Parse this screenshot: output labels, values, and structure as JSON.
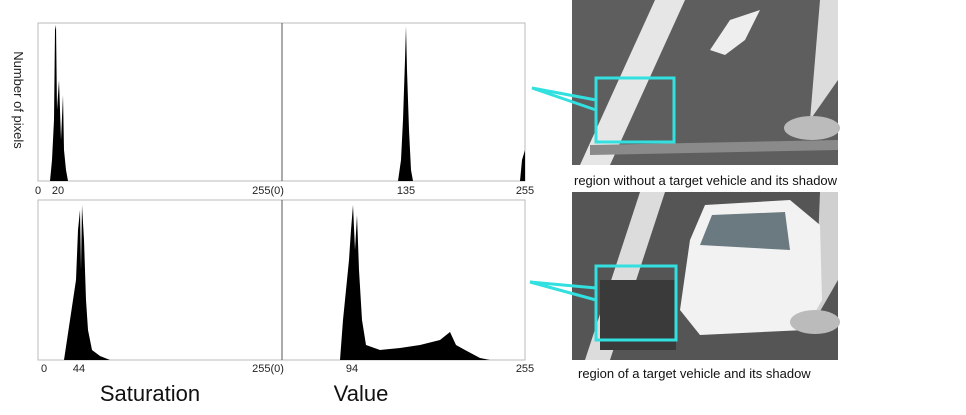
{
  "y_axis_label": "Number of pixels",
  "x_axis_labels": [
    "Saturation",
    "Value"
  ],
  "panels": [
    {
      "ticks": [
        "0",
        "20",
        "255(0)",
        "135",
        "255"
      ],
      "caption": "region without a target vehicle and its shadow"
    },
    {
      "ticks": [
        "0",
        "44",
        "255(0)",
        "94",
        "255"
      ],
      "caption": "region of a target vehicle and its shadow"
    }
  ]
}
